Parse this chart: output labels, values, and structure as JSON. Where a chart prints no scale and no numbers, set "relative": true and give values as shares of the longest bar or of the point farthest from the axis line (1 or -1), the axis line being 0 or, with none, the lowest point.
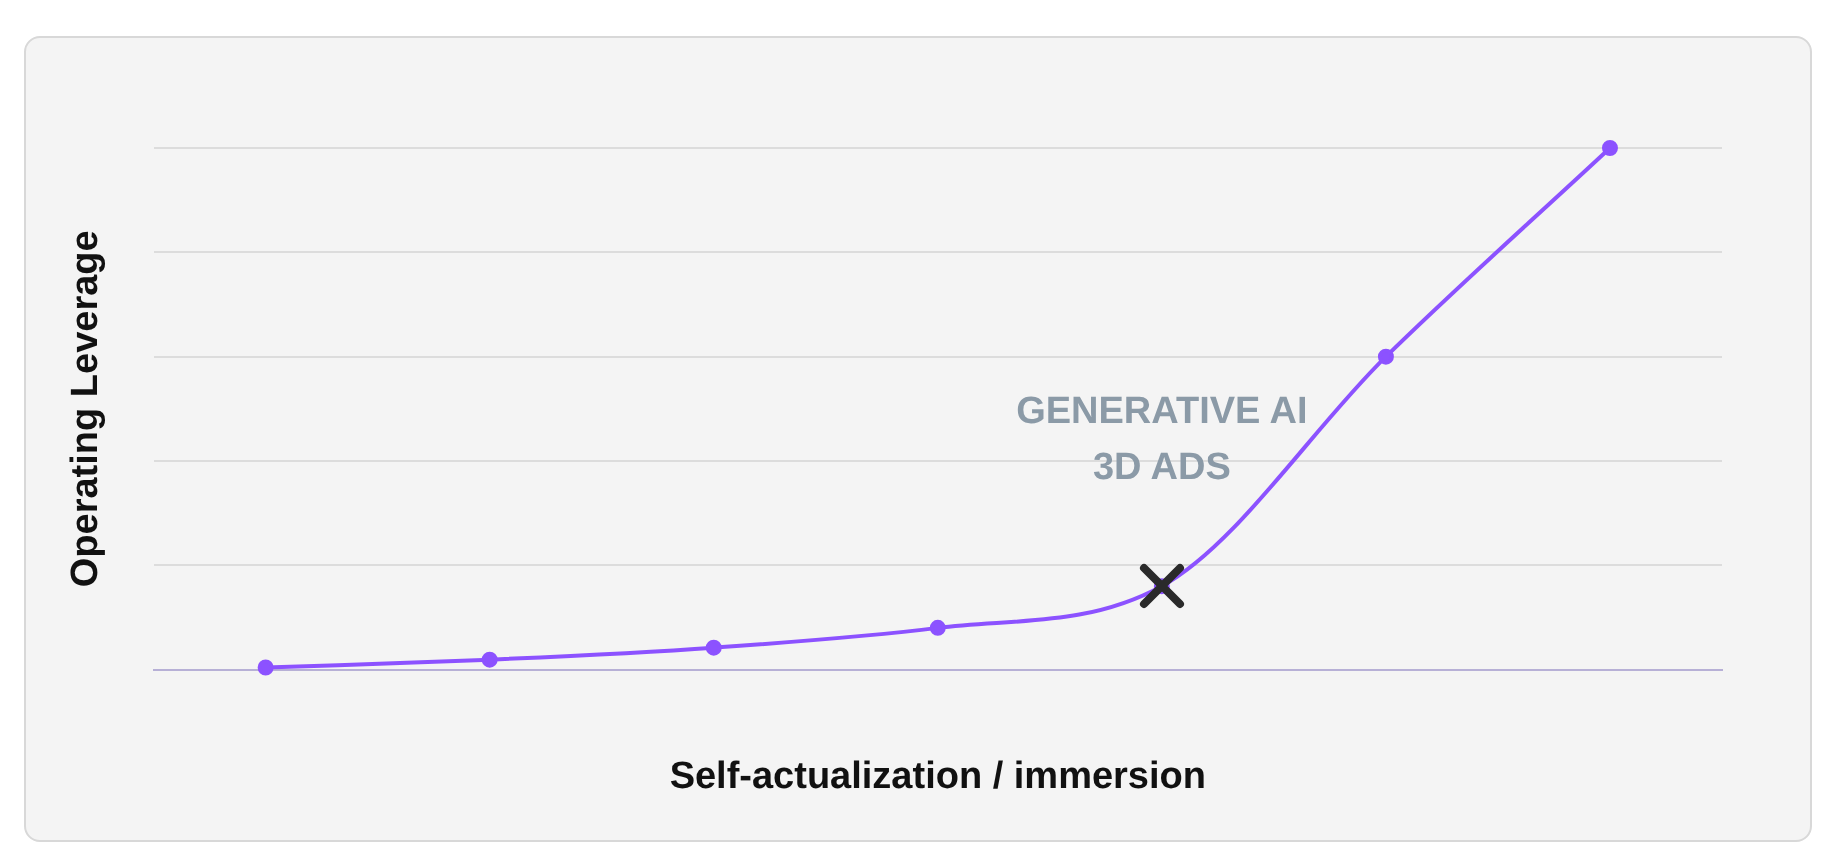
{
  "chart_data": {
    "type": "line",
    "relative": true,
    "xlabel": "Self-actualization / immersion",
    "ylabel": "Operating Leverage",
    "categories": [
      null,
      null,
      null,
      null,
      null,
      null,
      null
    ],
    "series": [
      {
        "color": "#8c52ff",
        "values": [
          0.004,
          0.019,
          0.042,
          0.08,
          0.16,
          0.6,
          1
        ]
      }
    ],
    "annotations": [
      "GENERATIVE AI",
      "3D ADS"
    ],
    "grid": "y",
    "legend": false,
    "marker": "circle",
    "line_style": "solid"
  }
}
